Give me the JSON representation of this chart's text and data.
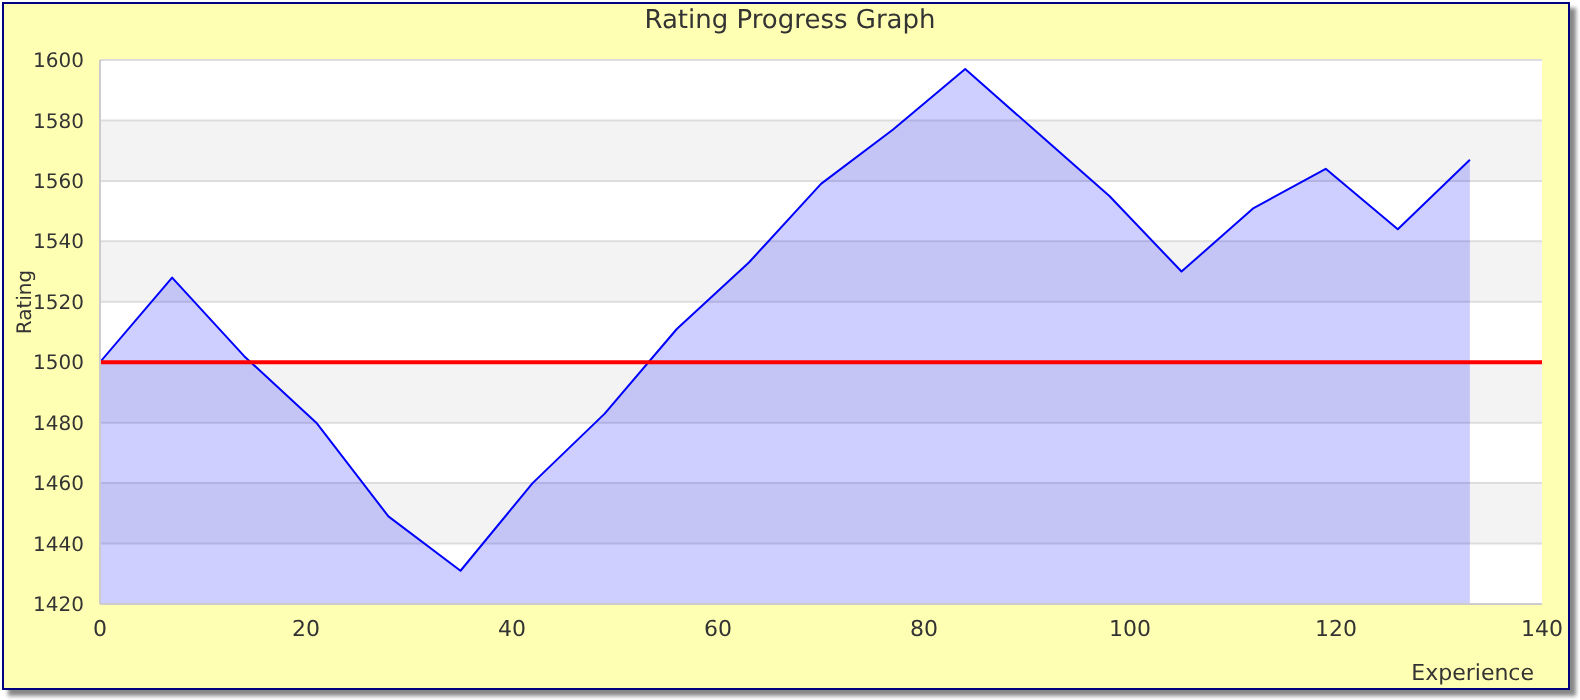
{
  "chart_data": {
    "type": "area",
    "title": "Rating Progress Graph",
    "xlabel": "Experience",
    "ylabel": "Rating",
    "x": [
      0,
      7,
      14,
      21,
      28,
      35,
      42,
      49,
      56,
      63,
      70,
      77,
      84,
      91,
      98,
      105,
      112,
      119,
      126,
      133
    ],
    "series": [
      {
        "color": "#0000ff",
        "values": [
          1500,
          1528,
          1502,
          1480,
          1449,
          1431,
          1460,
          1483,
          1511,
          1533,
          1559,
          1577,
          1597,
          1576,
          1555,
          1530,
          1551,
          1564,
          1544,
          1567
        ]
      }
    ],
    "xlim": [
      0,
      140
    ],
    "xticks": [
      0,
      20,
      40,
      60,
      80,
      100,
      120,
      140
    ],
    "ylim": [
      1420,
      1600
    ],
    "yticks": [
      1420,
      1440,
      1460,
      1480,
      1500,
      1520,
      1540,
      1560,
      1580,
      1600
    ],
    "ref_lines": [
      {
        "axis": "y",
        "value": 1500,
        "color": "#ff0000"
      }
    ],
    "grid": "y"
  }
}
